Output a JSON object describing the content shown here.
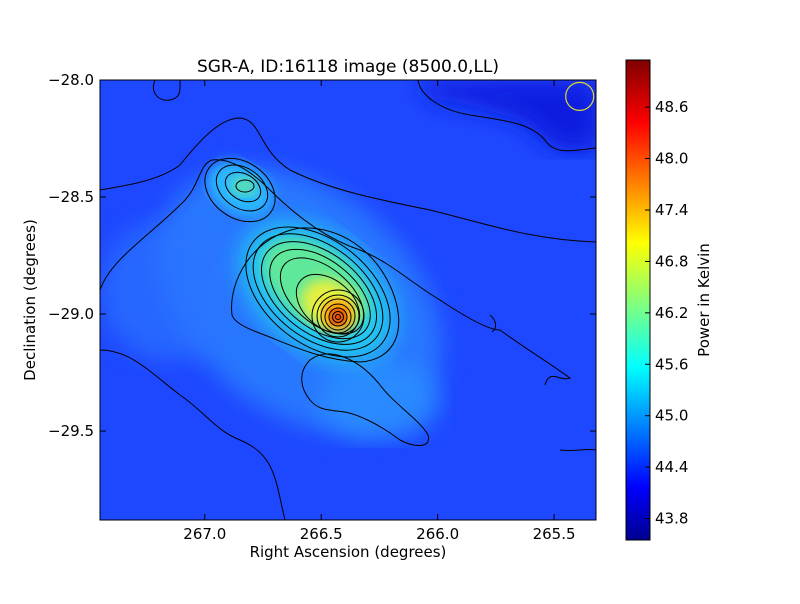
{
  "chart_data": {
    "type": "heatmap",
    "title": "SGR-A, ID:16118 image (8500.0,LL)",
    "xlabel": "Right Ascension (degrees)",
    "ylabel": "Declination (degrees)",
    "colorbar_label": "Power in Kelvin",
    "colormap": "jet",
    "x_axis_inverted": true,
    "xlim": [
      267.45,
      265.32
    ],
    "ylim": [
      -29.88,
      -28.0
    ],
    "x_ticks": [
      "267.0",
      "266.5",
      "266.0",
      "265.5"
    ],
    "x_tick_values": [
      267.0,
      266.5,
      266.0,
      265.5
    ],
    "y_ticks": [
      "−28.0",
      "−28.5",
      "−29.0",
      "−29.5"
    ],
    "y_tick_values": [
      -28.0,
      -28.5,
      -29.0,
      -29.5
    ],
    "colorbar_range": [
      43.55,
      49.15
    ],
    "colorbar_ticks": [
      "43.8",
      "44.4",
      "45.0",
      "45.6",
      "46.2",
      "46.8",
      "47.4",
      "48.0",
      "48.6"
    ],
    "colorbar_tick_values": [
      43.8,
      44.4,
      45.0,
      45.6,
      46.2,
      46.8,
      47.4,
      48.0,
      48.6
    ],
    "contours": "on",
    "background_level": 44.2,
    "sources": [
      {
        "ra": 266.43,
        "dec": -29.02,
        "peak": 49.1
      },
      {
        "ra": 266.56,
        "dec": -28.88,
        "peak": 46.6
      },
      {
        "ra": 266.82,
        "dec": -28.45,
        "peak": 46.1
      }
    ],
    "beam_marker": {
      "ra": 265.39,
      "dec": -28.07,
      "color": "#d9d92b"
    }
  }
}
